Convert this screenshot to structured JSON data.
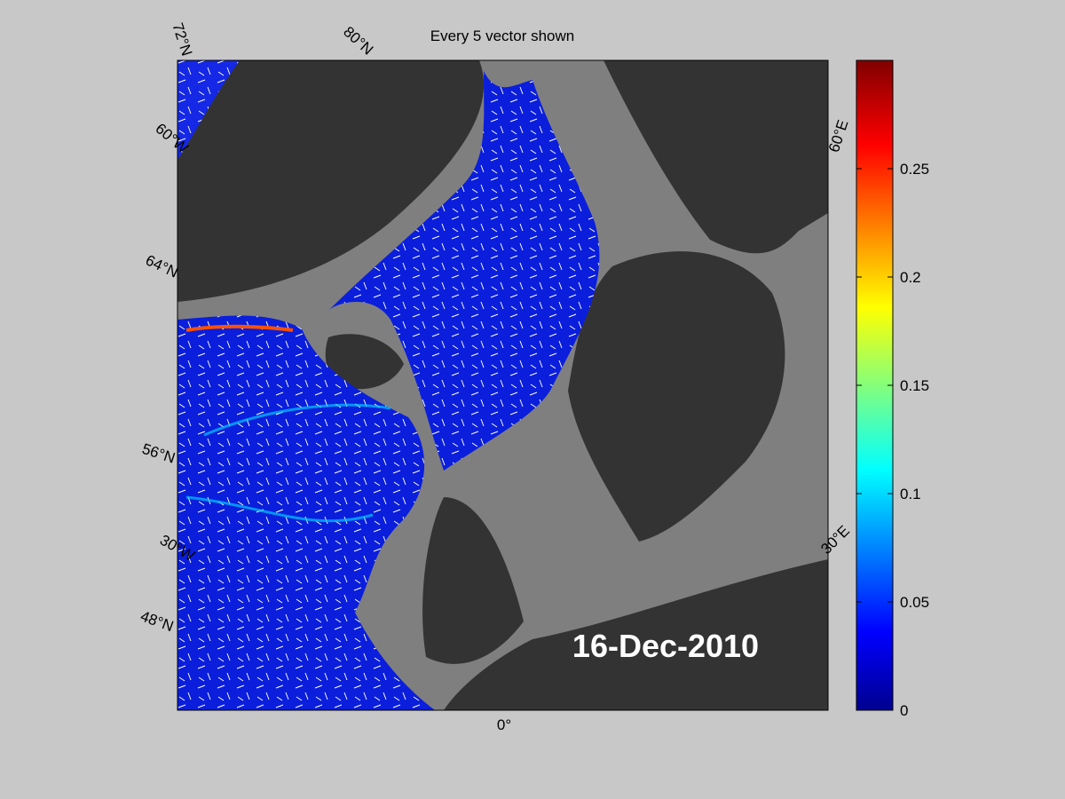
{
  "title": "Every 5 vector shown",
  "date": "16-Dec-2010",
  "graticule_labels": {
    "lat_72": "72°N",
    "lat_80": "80°N",
    "lon_60w": "60°W",
    "lat_64": "64°N",
    "lat_56": "56°N",
    "lon_30w": "30°W",
    "lat_48": "48°N",
    "lon_0": "0°",
    "lon_30e": "30°E",
    "lon_60e": "60°E"
  },
  "colorbar": {
    "lim": [
      0,
      0.3
    ],
    "ticks": [
      0,
      0.05,
      0.1,
      0.15,
      0.2,
      0.25
    ]
  }
}
